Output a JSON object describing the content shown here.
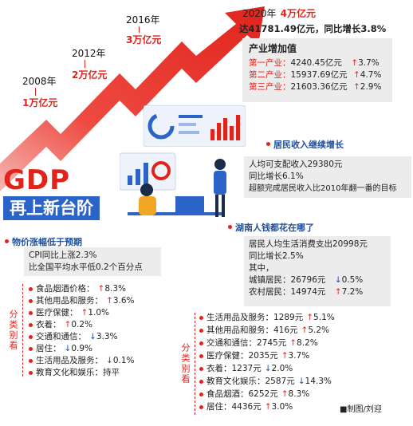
{
  "timeline": [
    {
      "year": "2008年",
      "amount": "1万亿元"
    },
    {
      "year": "2012年",
      "amount": "2万亿元"
    },
    {
      "year": "2016年",
      "amount": "3万亿元"
    }
  ],
  "headline": {
    "year": "2020年",
    "amount": "4万亿元",
    "detail": "达41781.49亿元，同比增长3.8%"
  },
  "value_added": {
    "title": "产业增加值",
    "rows": [
      {
        "label": "第一产业：",
        "value": "4240.45亿元",
        "change": "3.7%",
        "dir": "up"
      },
      {
        "label": "第二产业：",
        "value": "15937.69亿元",
        "change": "4.7%",
        "dir": "up"
      },
      {
        "label": "第三产业：",
        "value": "21603.36亿元",
        "change": "2.9%",
        "dir": "up"
      }
    ]
  },
  "gdp_title": {
    "line1": "GDP",
    "line2": "再上新台阶"
  },
  "income": {
    "title": "居民收入继续增长",
    "lines": [
      "人均可支配收入29380元",
      "同比增长6.1%",
      "超额完成居民收入比2010年翻一番的目标"
    ]
  },
  "prices": {
    "title": "物价涨幅低于预期",
    "lines": [
      "CPI同比上涨2.3%",
      "比全国平均水平低0.2个百分点"
    ],
    "side_label": "分类别看",
    "items": [
      {
        "label": "食品烟酒价格：",
        "change": "8.3%",
        "dir": "up"
      },
      {
        "label": "其他用品和服务：",
        "change": "3.6%",
        "dir": "up"
      },
      {
        "label": "医疗保健：",
        "change": "1.0%",
        "dir": "up"
      },
      {
        "label": "衣着：",
        "change": "0.2%",
        "dir": "up"
      },
      {
        "label": "交通和通信：",
        "change": "3.3%",
        "dir": "down"
      },
      {
        "label": "居住：",
        "change": "0.9%",
        "dir": "down"
      },
      {
        "label": "生活用品及服务：",
        "change": "0.1%",
        "dir": "down"
      },
      {
        "label": "教育文化和娱乐：",
        "change": "持平",
        "dir": "none"
      }
    ]
  },
  "spending": {
    "title": "湖南人钱都花在哪了",
    "lines": [
      "居民人均生活消费支出20998元",
      "同比增长2.5%",
      "其中，"
    ],
    "urban": {
      "label": "城镇居民：",
      "value": "26796元",
      "change": "0.5%",
      "dir": "down"
    },
    "rural": {
      "label": "农村居民：",
      "value": "14974元",
      "change": "7.2%",
      "dir": "up"
    },
    "side_label": "分类别看",
    "items": [
      {
        "label": "生活用品及服务：",
        "value": "1289元",
        "change": "5.1%",
        "dir": "up"
      },
      {
        "label": "其他用品和服务：",
        "value": "416元",
        "change": "5.2%",
        "dir": "up"
      },
      {
        "label": "交通和通信：",
        "value": "2745元",
        "change": "8.2%",
        "dir": "up"
      },
      {
        "label": "医疗保健：",
        "value": "2035元",
        "change": "3.7%",
        "dir": "up"
      },
      {
        "label": "衣着：",
        "value": "1237元",
        "change": "2.0%",
        "dir": "down"
      },
      {
        "label": "教育文化娱乐：",
        "value": "2587元",
        "change": "14.3%",
        "dir": "down"
      },
      {
        "label": "食品烟酒：",
        "value": "6252元",
        "change": "8.3%",
        "dir": "up"
      },
      {
        "label": "居住：",
        "value": "4436元",
        "change": "3.0%",
        "dir": "up"
      }
    ]
  },
  "credit": "■制图/刘迎"
}
